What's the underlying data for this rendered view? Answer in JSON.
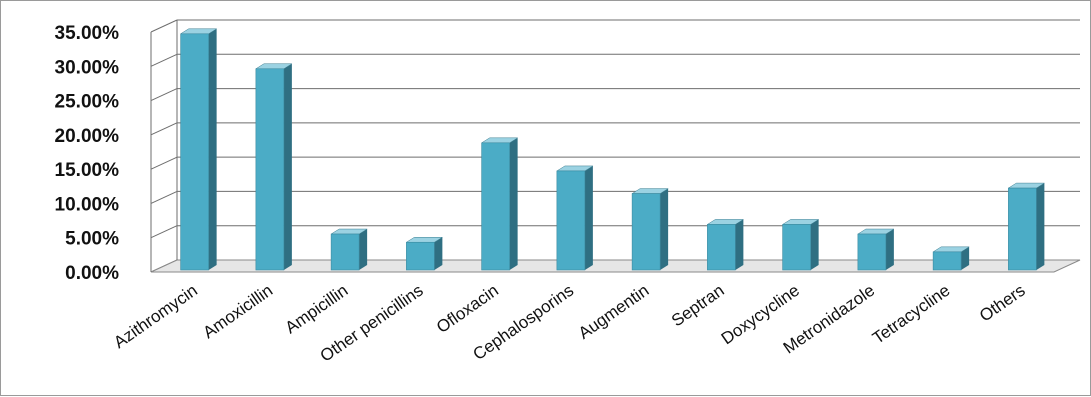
{
  "chart_data": {
    "type": "bar",
    "title": "",
    "xlabel": "",
    "ylabel": "",
    "ylim": [
      0,
      35
    ],
    "yticks": [
      "0.00%",
      "5.00%",
      "10.00%",
      "15.00%",
      "20.00%",
      "25.00%",
      "30.00%",
      "35.00%"
    ],
    "ytick_values": [
      0,
      5,
      10,
      15,
      20,
      25,
      30,
      35
    ],
    "grid": true,
    "legend": "none",
    "style": "3d-column",
    "categories": [
      "Azithromycin",
      "Amoxicillin",
      "Ampicillin",
      "Other penicillins",
      "Ofloxacin",
      "Cephalosporins",
      "Augmentin",
      "Septran",
      "Doxycycline",
      "Metronidazole",
      "Tetracycline",
      "Others"
    ],
    "values": [
      34.3,
      29.2,
      5.1,
      3.9,
      18.4,
      14.3,
      11.0,
      6.5,
      6.5,
      5.1,
      2.5,
      11.8
    ],
    "colors": {
      "bar_front": "#4bacc6",
      "bar_side": "#2f6f82",
      "bar_top": "#9bd2e2",
      "grid": "#6e6e6e"
    }
  }
}
